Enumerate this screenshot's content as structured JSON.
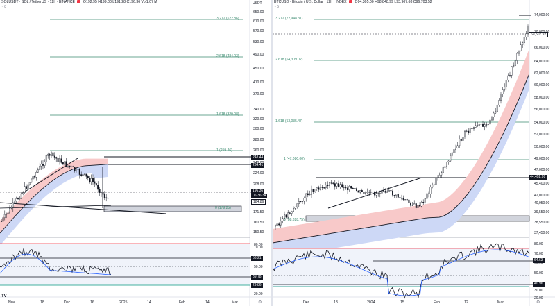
{
  "left": {
    "header": {
      "symbol_line": "SOLUSDT · SOL / TetherUS · 12h · BINANCE",
      "ohlc": "O192.95 H199.00 L191.28 C196.36 Vol1.07 M",
      "sub": "~ 8",
      "currency": "USDT"
    },
    "fib_labels": [
      "3.272 (622.86)",
      "2.618 (484.03)",
      "1.618 (329.08)",
      "1 (259.26)",
      "0 (179.25)"
    ],
    "price_axis": [
      "650.00",
      "610.00",
      "570.00",
      "530.00",
      "490.00",
      "450.00",
      "410.00",
      "370.00",
      "340.00",
      "320.00",
      "300.00",
      "280.00",
      "260.00",
      "240.00",
      "224.00",
      "208.00",
      "185.00",
      "171.50",
      "160.50",
      "150.50"
    ],
    "price_tags": [
      "248.44",
      "234.41",
      "196.36",
      "06:36:34",
      "184.86"
    ],
    "osc_axis": [
      "80.00",
      "70.00",
      "50.00",
      "40.00",
      "30.00",
      "20.00"
    ],
    "osc_tags": [
      "58.21",
      "39.78",
      "29.86"
    ],
    "time_axis": [
      "Nov",
      "18",
      "Dec",
      "16",
      "2025",
      "14",
      "Feb",
      "14",
      "Mar"
    ]
  },
  "right": {
    "header": {
      "symbol_line": "BTCUSD · Bitcoin / U.S. Dollar · 12h · INDEX",
      "ohlc": "O94,305.00 H98,848.99 L93,907.68 C96,703.52",
      "sub": "~ 5"
    },
    "fib_labels": [
      "3.272 (72,948.31)",
      "2.618 (64,309.02)",
      "1.618 (53,035.47)",
      "1 (47,080.00)",
      "0 (38,828.75)"
    ],
    "price_axis": [
      "74,000.00",
      "70,000.00",
      "66,000.00",
      "64,000.00",
      "62,000.00",
      "60,000.00",
      "58,000.00",
      "56,000.00",
      "54,000.00",
      "52,000.00",
      "50,000.00",
      "49,000.00",
      "47,000.00",
      "45,400.00",
      "42,000.00",
      "40,950.00",
      "39,550.00",
      "38,550.00",
      "37,450.00"
    ],
    "price_tags": [
      "69,507.92",
      "44,492.98"
    ],
    "osc_axis": [
      "80.00",
      "70.00",
      "60.00",
      "50.00",
      "40.00",
      "30.00",
      "20.00"
    ],
    "osc_tags": [
      "64.63",
      "40.96"
    ],
    "time_axis": [
      "Dec",
      "18",
      "2024",
      "15",
      "Feb",
      "12",
      "Mar"
    ]
  },
  "colors": {
    "up": "#089981",
    "down": "#f23645",
    "fib": "#3a8a6f",
    "ema_red_fill": "#f8c9c9",
    "ema_blue_fill": "#cdd8f6",
    "rsi": "#131722",
    "rsi_ma": "#2962ff"
  }
}
